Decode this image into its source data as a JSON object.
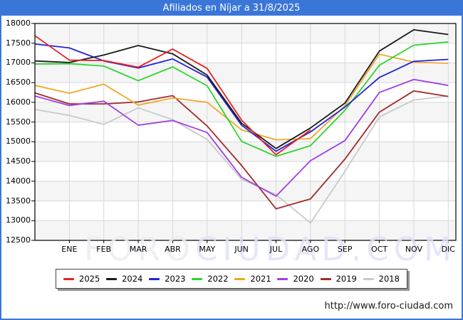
{
  "title": "Afiliados en Níjar a 31/8/2025",
  "footer": {
    "url": "http://www.foro-ciudad.com"
  },
  "watermark": {
    "part1": "FORO",
    "part2": "CIUDAD.COM"
  },
  "colors": {
    "frame_blue": "#3a76d8",
    "plot_border": "#000000",
    "gridline": "#d8d8d8",
    "band": "#f5f5f5",
    "watermark_gray": "#ededf2",
    "watermark_lavender": "#e2e2f8"
  },
  "chart_data": {
    "type": "line",
    "title": "Afiliados en Níjar a 31/8/2025",
    "x_categories": [
      "",
      "ENE",
      "FEB",
      "MAR",
      "ABR",
      "MAY",
      "JUN",
      "JUL",
      "AGO",
      "SEP",
      "OCT",
      "NOV",
      "DIC"
    ],
    "x_note": "first value of each series sits on the left axis before the ENE tick",
    "ylim": [
      12500,
      18000
    ],
    "ytick_step": 500,
    "yticks": [
      18000,
      17500,
      17000,
      16500,
      16000,
      15500,
      15000,
      14500,
      14000,
      13500,
      13000,
      12500
    ],
    "grid": true,
    "legend_position": "bottom",
    "series": [
      {
        "name": "2025",
        "color": "#e62222",
        "values": [
          17690,
          17070,
          17060,
          16890,
          17350,
          16860,
          15550,
          14670,
          15300
        ]
      },
      {
        "name": "2024",
        "color": "#1a1a1a",
        "values": [
          17050,
          17010,
          17200,
          17440,
          17230,
          16690,
          15470,
          14830,
          15350,
          15980,
          17300,
          17840,
          17720
        ]
      },
      {
        "name": "2023",
        "color": "#2222dd",
        "values": [
          17480,
          17380,
          17050,
          16870,
          17100,
          16640,
          15420,
          14760,
          15250,
          15880,
          16630,
          17040,
          17090
        ]
      },
      {
        "name": "2022",
        "color": "#2ed42e",
        "values": [
          16970,
          16980,
          16920,
          16550,
          16900,
          16420,
          15010,
          14630,
          14900,
          15800,
          16940,
          17450,
          17530
        ]
      },
      {
        "name": "2021",
        "color": "#efa726",
        "values": [
          16430,
          16230,
          16460,
          15930,
          16110,
          16000,
          15300,
          15050,
          15080,
          15910,
          17220,
          17020,
          16990
        ]
      },
      {
        "name": "2020",
        "color": "#a03fe6",
        "values": [
          16160,
          15920,
          16030,
          15420,
          15540,
          15235,
          14100,
          13620,
          14520,
          15030,
          16250,
          16580,
          16430
        ]
      },
      {
        "name": "2019",
        "color": "#a22b2b",
        "values": [
          16240,
          15960,
          15960,
          16010,
          16170,
          15400,
          14400,
          13300,
          13550,
          14560,
          15750,
          16290,
          16150
        ]
      },
      {
        "name": "2018",
        "color": "#c9c9c9",
        "values": [
          15820,
          15670,
          15440,
          15860,
          15560,
          15060,
          14050,
          13660,
          12940,
          14250,
          15630,
          16060,
          16160
        ]
      }
    ]
  }
}
